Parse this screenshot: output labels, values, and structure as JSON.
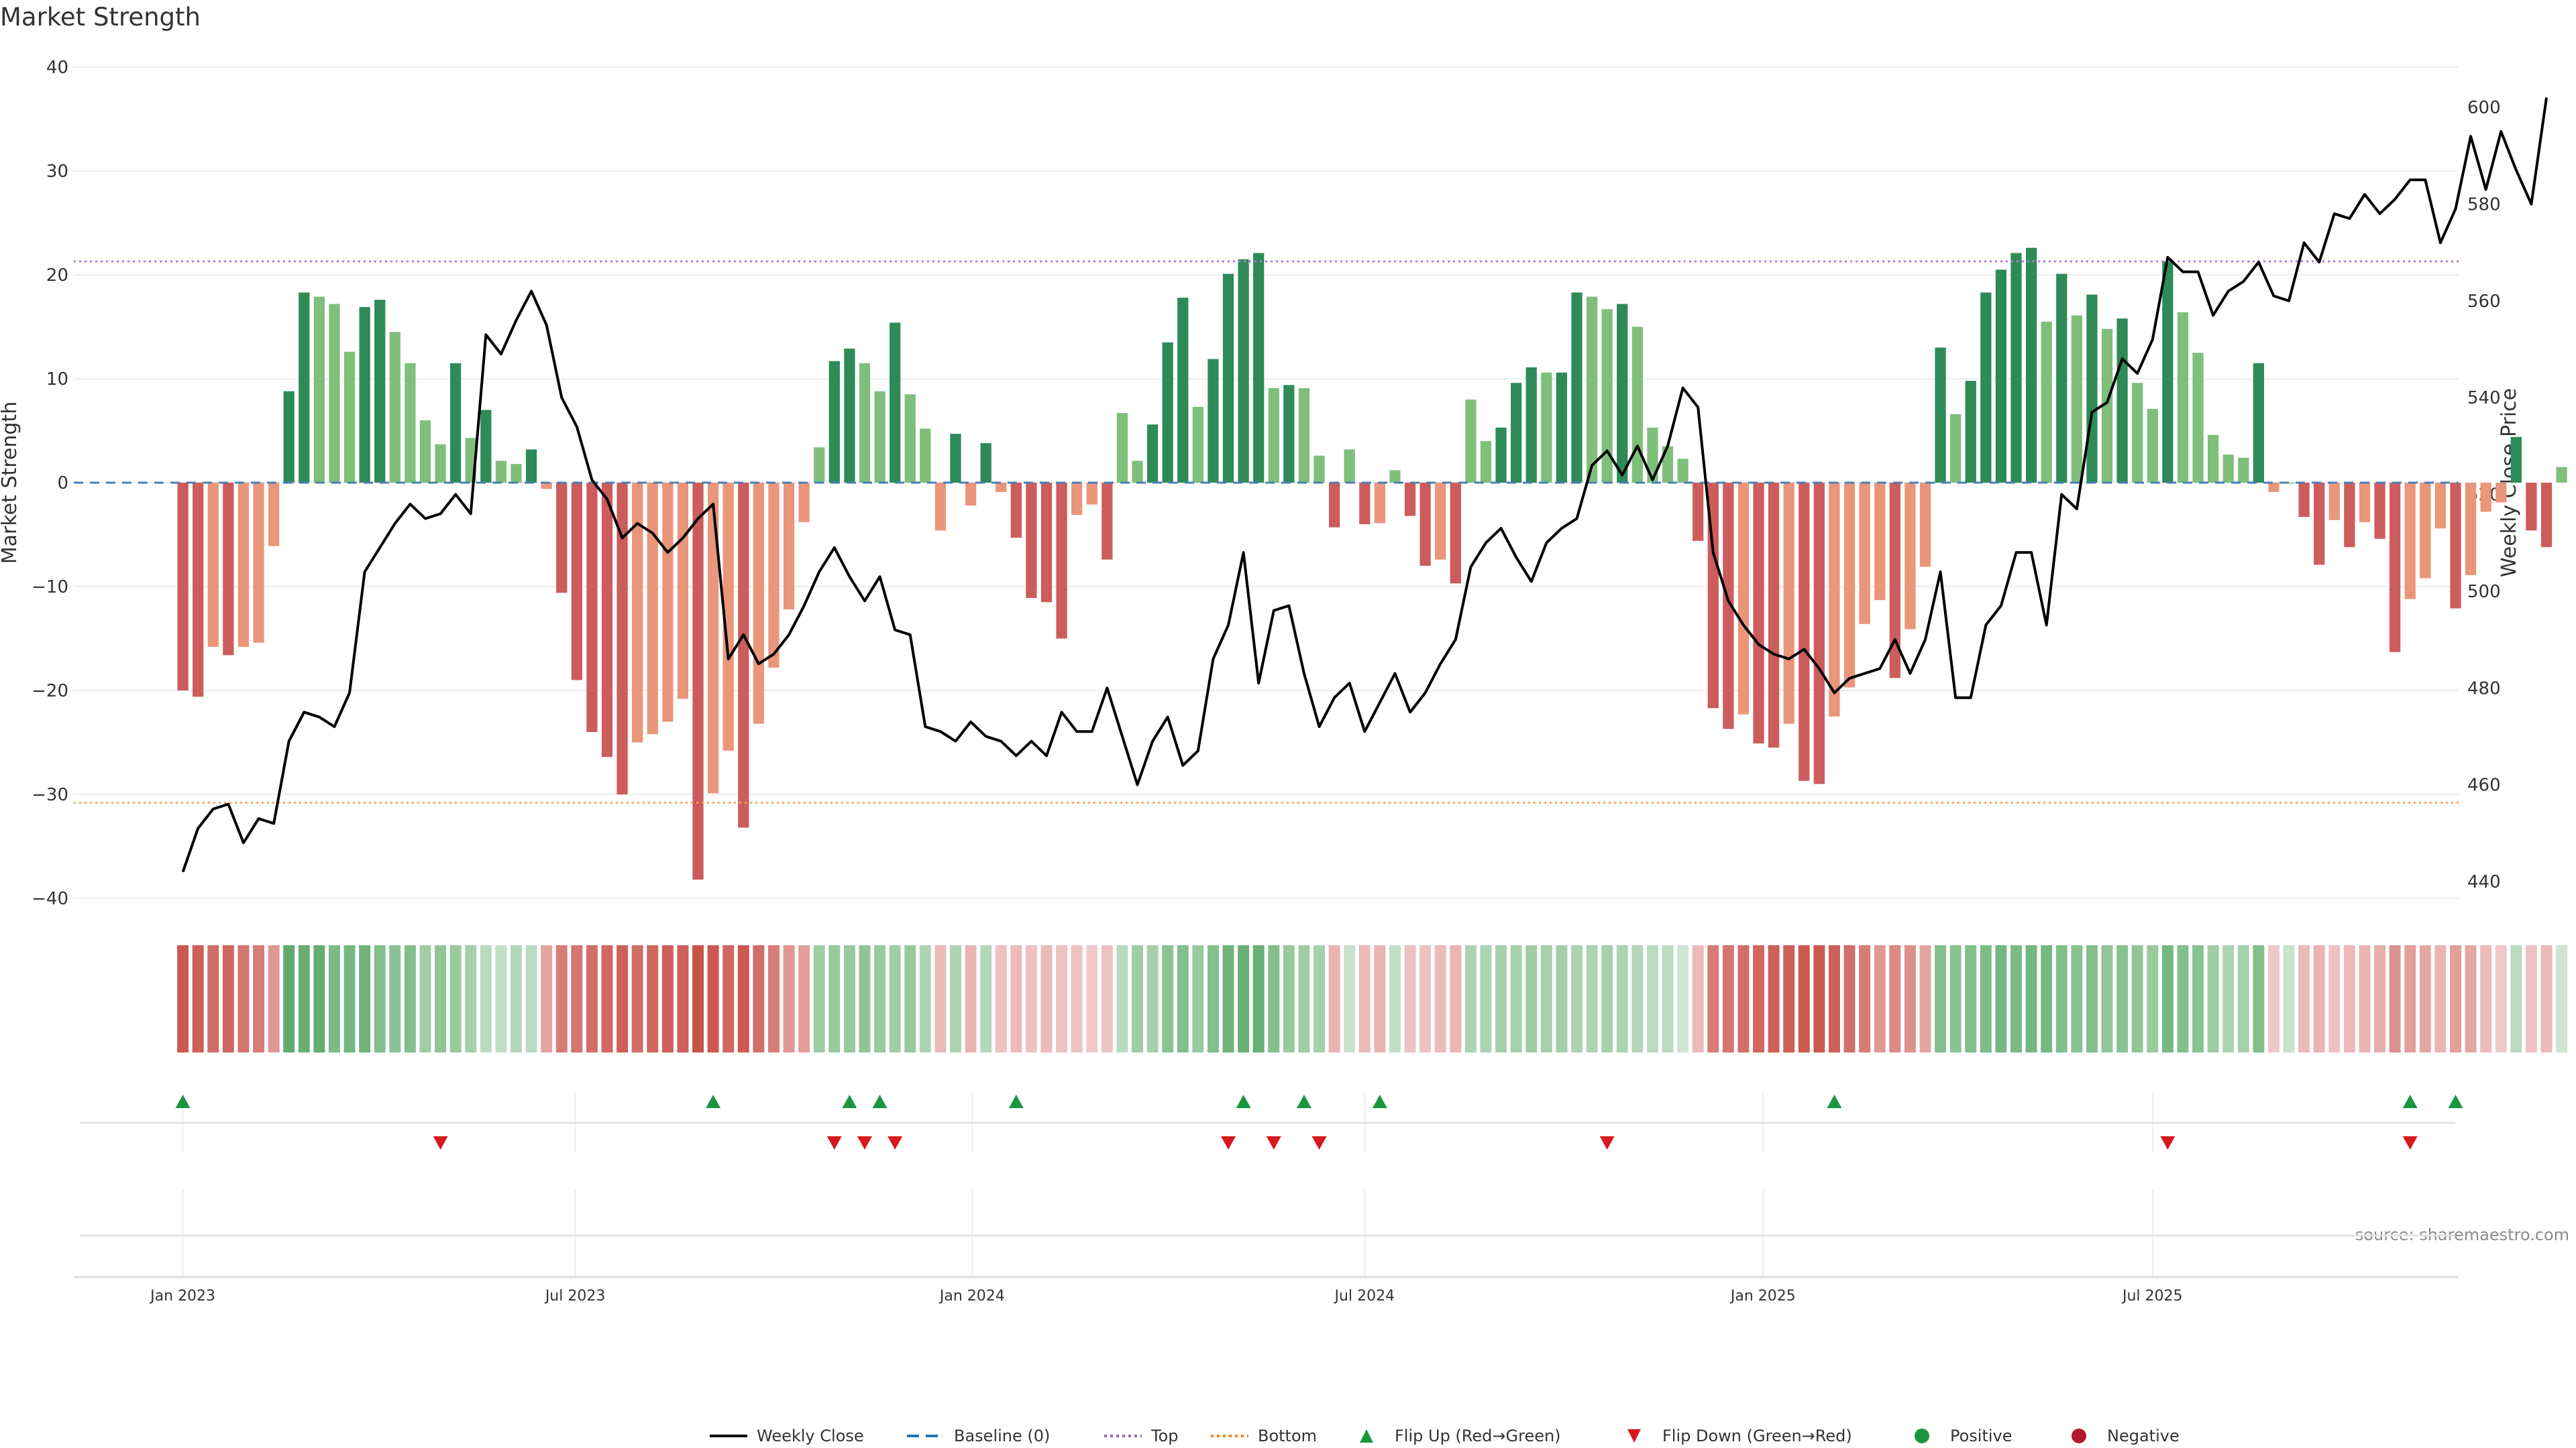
{
  "chart_data": {
    "type": "bar",
    "title": "Market Strength",
    "ylabel_left": "Market Strength",
    "ylabel_right": "Weekly Close Price",
    "source": "source: sharemaestro.com",
    "ylim_left": [
      -40,
      40
    ],
    "yticks_left": [
      -40,
      -30,
      -20,
      -10,
      0,
      10,
      20,
      30,
      40
    ],
    "ytick_labels_left": [
      "−40",
      "−30",
      "−20",
      "−10",
      "0",
      "10",
      "20",
      "30",
      "40"
    ],
    "ylim_right": [
      437,
      608
    ],
    "yticks_right": [
      440,
      460,
      480,
      500,
      520,
      540,
      560,
      580,
      600
    ],
    "ytick_labels_right": [
      "440",
      "460",
      "480",
      "500",
      "520",
      "540",
      "560",
      "580",
      "600"
    ],
    "top_level": 21.3,
    "bottom_level": -30.8,
    "baseline": 0,
    "x_start_week": -7.2,
    "x_end_week": 150.2,
    "x_tick_weeks": [
      0,
      25.9,
      52.1,
      78,
      104.3,
      130
    ],
    "x_tick_labels": [
      "Jan 2023",
      "Jul 2023",
      "Jan 2024",
      "Jul 2024",
      "Jan 2025",
      "Jul 2025"
    ],
    "strength": [
      -20,
      -20.6,
      -15.8,
      -16.6,
      -15.8,
      -15.4,
      -6.1,
      8.8,
      18.3,
      17.9,
      17.2,
      12.6,
      16.9,
      17.6,
      14.5,
      11.5,
      6,
      3.7,
      11.5,
      4.3,
      7,
      2.1,
      1.8,
      3.2,
      -0.6,
      -10.6,
      -19,
      -24,
      -26.4,
      -30,
      -25,
      -24.2,
      -23,
      -20.8,
      -38.2,
      -29.9,
      -25.8,
      -33.2,
      -23.2,
      -17.8,
      -12.2,
      -3.8,
      3.4,
      11.7,
      12.9,
      11.5,
      8.8,
      15.4,
      8.5,
      5.2,
      -4.6,
      4.7,
      -2.2,
      3.8,
      -0.9,
      -5.3,
      -11.1,
      -11.5,
      -15,
      -3.1,
      -2.1,
      -7.4,
      6.7,
      2.1,
      5.6,
      13.5,
      17.8,
      7.3,
      11.9,
      20.1,
      21.5,
      22.1,
      9.1,
      9.4,
      9.1,
      2.6,
      -4.3,
      3.2,
      -4,
      -3.9,
      1.2,
      -3.2,
      -8,
      -7.4,
      -9.7,
      8,
      4,
      5.3,
      9.6,
      11.1,
      10.6,
      10.6,
      18.3,
      17.9,
      16.7,
      17.2,
      15,
      5.3,
      3.5,
      2.3,
      -5.6,
      -21.7,
      -23.7,
      -22.3,
      -25.1,
      -25.5,
      -23.2,
      -28.7,
      -29,
      -22.5,
      -19.7,
      -13.6,
      -11.3,
      -18.8,
      -14.1,
      -8.1,
      13,
      6.6,
      9.8,
      18.3,
      20.5,
      22.1,
      22.6,
      15.5,
      20.1,
      16.1,
      18.1,
      14.8,
      15.8,
      9.6,
      7.1,
      21.3,
      16.4,
      12.5,
      4.6,
      2.7,
      2.4,
      11.5,
      -0.9,
      0,
      -3.3,
      -7.9,
      -3.6,
      -6.2,
      -3.8,
      -5.4,
      -16.3,
      -11.2,
      -9.2,
      -4.4,
      -12.1,
      -8.9,
      -2.8,
      -1.9,
      4.4,
      -4.6,
      -6.2,
      1.5
    ],
    "close": [
      442,
      451,
      455,
      456,
      448,
      453,
      452,
      469,
      475,
      474,
      472,
      479,
      504,
      509,
      514,
      518,
      515,
      516,
      520,
      516,
      553,
      549,
      556,
      562,
      555,
      540,
      534,
      523,
      519,
      511,
      514,
      512,
      508,
      511,
      515,
      518,
      486,
      491,
      485,
      487,
      491,
      497,
      504,
      509,
      503,
      498,
      503,
      492,
      491,
      472,
      471,
      469,
      473,
      470,
      469,
      466,
      469,
      466,
      475,
      471,
      471,
      480,
      470,
      460,
      469,
      474,
      464,
      467,
      486,
      493,
      508,
      481,
      496,
      497,
      483,
      472,
      478,
      481,
      471,
      477,
      483,
      475,
      479,
      485,
      490,
      505,
      510,
      513,
      507,
      502,
      510,
      513,
      515,
      526,
      529,
      524,
      530,
      523,
      530,
      542,
      538,
      508,
      498,
      493,
      489,
      487,
      486,
      488,
      484,
      479,
      482,
      483,
      484,
      490,
      483,
      490,
      504,
      478,
      478,
      493,
      497,
      508,
      508,
      493,
      520,
      517,
      537,
      539,
      548,
      545,
      552,
      569,
      566,
      566,
      557,
      562,
      564,
      568,
      561,
      560,
      572,
      568,
      578,
      577,
      582,
      578,
      581,
      585,
      585,
      572,
      579,
      594,
      583,
      595,
      587,
      580,
      602
    ],
    "tint": [
      0.05,
      0.1,
      0.2,
      0.15,
      0.25,
      0.3,
      0.5,
      0.05,
      0.1,
      0.08,
      0.25,
      0.2,
      0.15,
      0.3,
      0.35,
      0.3,
      0.5,
      0.4,
      0.45,
      0.55,
      0.7,
      0.75,
      0.65,
      0.7,
      0.6,
      0.3,
      0.25,
      0.2,
      0.15,
      0.1,
      0.2,
      0.15,
      0.1,
      0.1,
      0.0,
      0.05,
      0.15,
      0.05,
      0.2,
      0.3,
      0.5,
      0.55,
      0.5,
      0.45,
      0.45,
      0.4,
      0.45,
      0.5,
      0.45,
      0.6,
      0.75,
      0.6,
      0.7,
      0.65,
      0.8,
      0.75,
      0.8,
      0.75,
      0.8,
      0.8,
      0.85,
      0.8,
      0.7,
      0.5,
      0.55,
      0.35,
      0.3,
      0.45,
      0.3,
      0.15,
      0.1,
      0.1,
      0.3,
      0.45,
      0.5,
      0.55,
      0.7,
      0.8,
      0.75,
      0.7,
      0.75,
      0.8,
      0.8,
      0.75,
      0.7,
      0.6,
      0.6,
      0.55,
      0.55,
      0.5,
      0.55,
      0.55,
      0.6,
      0.6,
      0.55,
      0.6,
      0.65,
      0.7,
      0.7,
      0.85,
      0.75,
      0.3,
      0.25,
      0.2,
      0.15,
      0.1,
      0.1,
      0.05,
      0.05,
      0.1,
      0.2,
      0.3,
      0.5,
      0.4,
      0.45,
      0.6,
      0.3,
      0.35,
      0.3,
      0.25,
      0.2,
      0.25,
      0.2,
      0.2,
      0.3,
      0.35,
      0.3,
      0.4,
      0.35,
      0.4,
      0.45,
      0.2,
      0.3,
      0.35,
      0.5,
      0.6,
      0.55,
      0.3,
      0.85,
      0.8,
      0.75,
      0.7,
      0.8,
      0.75,
      0.7,
      0.65,
      0.45,
      0.55,
      0.6,
      0.7,
      0.55,
      0.6,
      0.75,
      0.85,
      0.7,
      0.8,
      0.75,
      0.85
    ],
    "flip_up_weeks": [
      0,
      35,
      44,
      46,
      55,
      70,
      74,
      79,
      109,
      147,
      150
    ],
    "flip_down_weeks": [
      17,
      43,
      45,
      47,
      69,
      72,
      75,
      94,
      131,
      147
    ],
    "legend": [
      {
        "label": "Weekly Close",
        "kind": "line",
        "color": "#000000"
      },
      {
        "label": "Baseline (0)",
        "kind": "dash",
        "color": "#1f77b4"
      },
      {
        "label": "Top",
        "kind": "dot",
        "color": "#9467bd"
      },
      {
        "label": "Bottom",
        "kind": "dot",
        "color": "#ff7f0e"
      },
      {
        "label": "Flip Up (Red→Green)",
        "kind": "tri-up",
        "color": "#1a9641"
      },
      {
        "label": "Flip Down (Green→Red)",
        "kind": "tri-down",
        "color": "#d7191c"
      },
      {
        "label": "Positive",
        "kind": "circle",
        "color": "#1a9641"
      },
      {
        "label": "Negative",
        "kind": "circle",
        "color": "#b2182b"
      }
    ]
  },
  "colors": {
    "pos_strong": "#2e8b57",
    "pos_light": "#7fbf7b",
    "neg_strong": "#cd5c5c",
    "neg_light": "#e9967a",
    "top_line": "#b07cc6",
    "bottom_line": "#f4a460",
    "baseline": "#4a7fb5",
    "grid": "#eeeeee"
  }
}
